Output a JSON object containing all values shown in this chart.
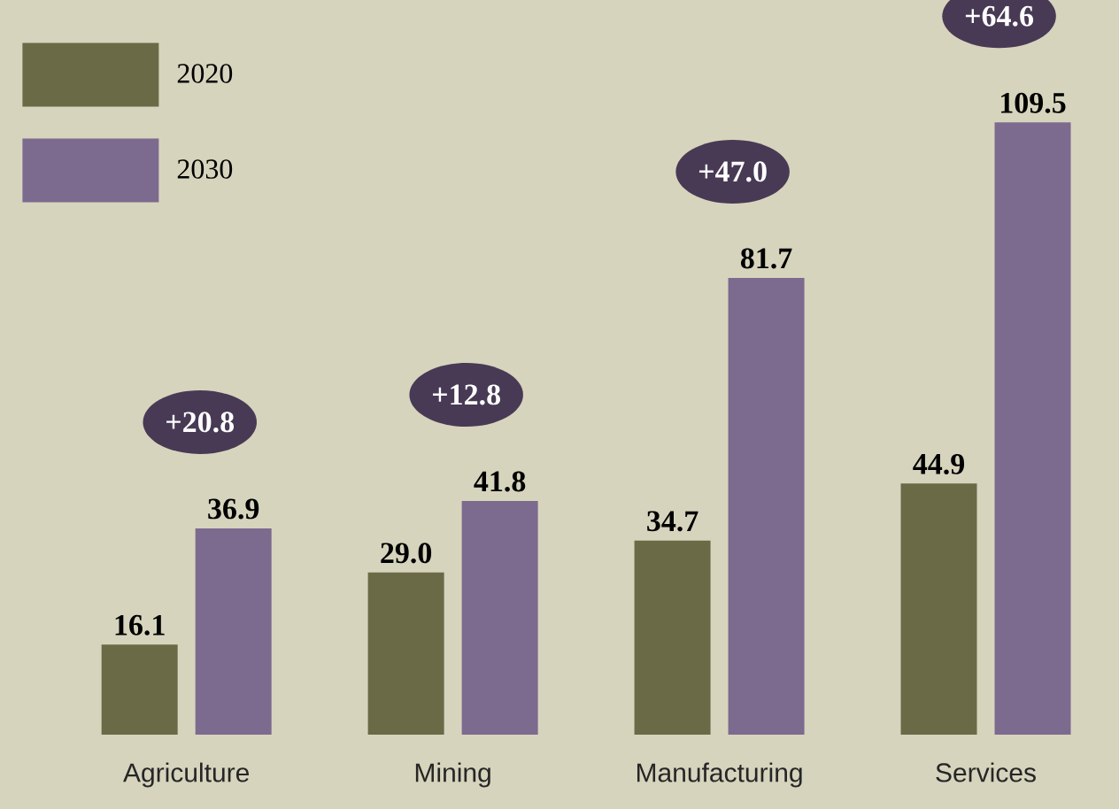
{
  "chart_data": {
    "type": "bar",
    "categories": [
      "Agriculture",
      "Mining",
      "Manufacturing",
      "Services"
    ],
    "series": [
      {
        "name": "2020",
        "color": "#6b6a46",
        "values": [
          16.1,
          29.0,
          34.7,
          44.9
        ],
        "value_labels": [
          "16.1",
          "29.0",
          "34.7",
          "44.9"
        ]
      },
      {
        "name": "2030",
        "color": "#7d6a8f",
        "values": [
          36.9,
          41.8,
          81.7,
          109.5
        ],
        "value_labels": [
          "36.9",
          "41.8",
          "81.7",
          "109.5"
        ]
      }
    ],
    "legend": "top left",
    "annotations": [
      "+20.8",
      "+12.8",
      "+47.0",
      "+64.6"
    ]
  }
}
